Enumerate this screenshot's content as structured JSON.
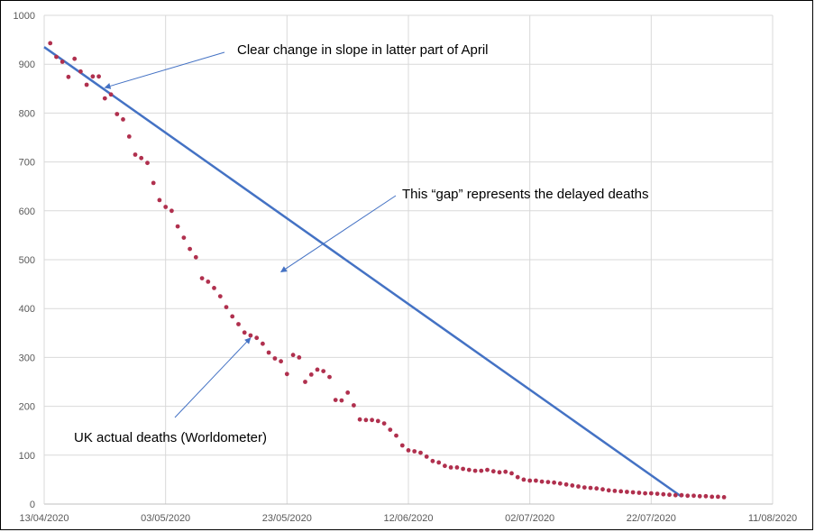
{
  "chart_data": {
    "type": "scatter",
    "title": "",
    "xlabel": "",
    "ylabel": "",
    "xlim": [
      "13/04/2020",
      "11/08/2020"
    ],
    "ylim": [
      0,
      1000
    ],
    "grid": true,
    "legend": "none",
    "x_tick_labels": [
      "13/04/2020",
      "03/05/2020",
      "23/05/2020",
      "12/06/2020",
      "02/07/2020",
      "22/07/2020",
      "11/08/2020"
    ],
    "y_tick_labels": [
      "0",
      "100",
      "200",
      "300",
      "400",
      "500",
      "600",
      "700",
      "800",
      "900",
      "1000"
    ],
    "series": [
      {
        "type": "scatter",
        "color": "#b0304e",
        "x": [
          "14/04/2020",
          "15/04/2020",
          "16/04/2020",
          "17/04/2020",
          "18/04/2020",
          "19/04/2020",
          "20/04/2020",
          "21/04/2020",
          "22/04/2020",
          "23/04/2020",
          "24/04/2020",
          "25/04/2020",
          "26/04/2020",
          "27/04/2020",
          "28/04/2020",
          "29/04/2020",
          "30/04/2020",
          "01/05/2020",
          "02/05/2020",
          "03/05/2020",
          "04/05/2020",
          "05/05/2020",
          "06/05/2020",
          "07/05/2020",
          "08/05/2020",
          "09/05/2020",
          "10/05/2020",
          "11/05/2020",
          "12/05/2020",
          "13/05/2020",
          "14/05/2020",
          "15/05/2020",
          "16/05/2020",
          "17/05/2020",
          "18/05/2020",
          "19/05/2020",
          "20/05/2020",
          "21/05/2020",
          "22/05/2020",
          "23/05/2020",
          "24/05/2020",
          "25/05/2020",
          "26/05/2020",
          "27/05/2020",
          "28/05/2020",
          "29/05/2020",
          "30/05/2020",
          "31/05/2020",
          "01/06/2020",
          "02/06/2020",
          "03/06/2020",
          "04/06/2020",
          "05/06/2020",
          "06/06/2020",
          "07/06/2020",
          "08/06/2020",
          "09/06/2020",
          "10/06/2020",
          "11/06/2020",
          "12/06/2020",
          "13/06/2020",
          "14/06/2020",
          "15/06/2020",
          "16/06/2020",
          "17/06/2020",
          "18/06/2020",
          "19/06/2020",
          "20/06/2020",
          "21/06/2020",
          "22/06/2020",
          "23/06/2020",
          "24/06/2020",
          "25/06/2020",
          "26/06/2020",
          "27/06/2020",
          "28/06/2020",
          "29/06/2020",
          "30/06/2020",
          "01/07/2020",
          "02/07/2020",
          "03/07/2020",
          "04/07/2020",
          "05/07/2020",
          "06/07/2020",
          "07/07/2020",
          "08/07/2020",
          "09/07/2020",
          "10/07/2020",
          "11/07/2020",
          "12/07/2020",
          "13/07/2020",
          "14/07/2020",
          "15/07/2020",
          "16/07/2020",
          "17/07/2020",
          "18/07/2020",
          "19/07/2020",
          "20/07/2020",
          "21/07/2020",
          "22/07/2020",
          "23/07/2020",
          "24/07/2020",
          "25/07/2020",
          "26/07/2020",
          "27/07/2020",
          "28/07/2020",
          "29/07/2020",
          "30/07/2020",
          "31/07/2020",
          "01/08/2020",
          "02/08/2020",
          "03/08/2020"
        ],
        "y": [
          943,
          915,
          905,
          874,
          911,
          885,
          858,
          875,
          875,
          830,
          838,
          798,
          787,
          752,
          715,
          708,
          698,
          657,
          622,
          608,
          600,
          568,
          545,
          522,
          505,
          462,
          455,
          442,
          425,
          403,
          384,
          368,
          351,
          345,
          340,
          328,
          310,
          298,
          292,
          266,
          305,
          300,
          250,
          265,
          275,
          272,
          260,
          213,
          212,
          228,
          202,
          173,
          172,
          172,
          170,
          165,
          152,
          140,
          120,
          110,
          108,
          105,
          97,
          88,
          85,
          78,
          75,
          75,
          72,
          70,
          68,
          68,
          70,
          67,
          65,
          66,
          63,
          55,
          50,
          48,
          48,
          46,
          45,
          44,
          42,
          40,
          38,
          36,
          34,
          33,
          32,
          30,
          28,
          27,
          26,
          25,
          24,
          23,
          22,
          22,
          21,
          20,
          19,
          18,
          18,
          17,
          17,
          16,
          16,
          15,
          15,
          14
        ]
      },
      {
        "type": "line",
        "color": "#4472c4",
        "x": [
          "13/04/2020",
          "27/07/2020"
        ],
        "y": [
          935,
          15
        ]
      }
    ],
    "annotations": [
      {
        "text": "Clear change in slope in latter part of April",
        "arrow_to": [
          "23/04/2020",
          852
        ]
      },
      {
        "text": "This “gap” represents the delayed deaths",
        "arrow_to": [
          "22/05/2020",
          475
        ]
      },
      {
        "text": "UK actual deaths (Worldometer)",
        "arrow_to": [
          "17/05/2020",
          340
        ]
      }
    ]
  }
}
